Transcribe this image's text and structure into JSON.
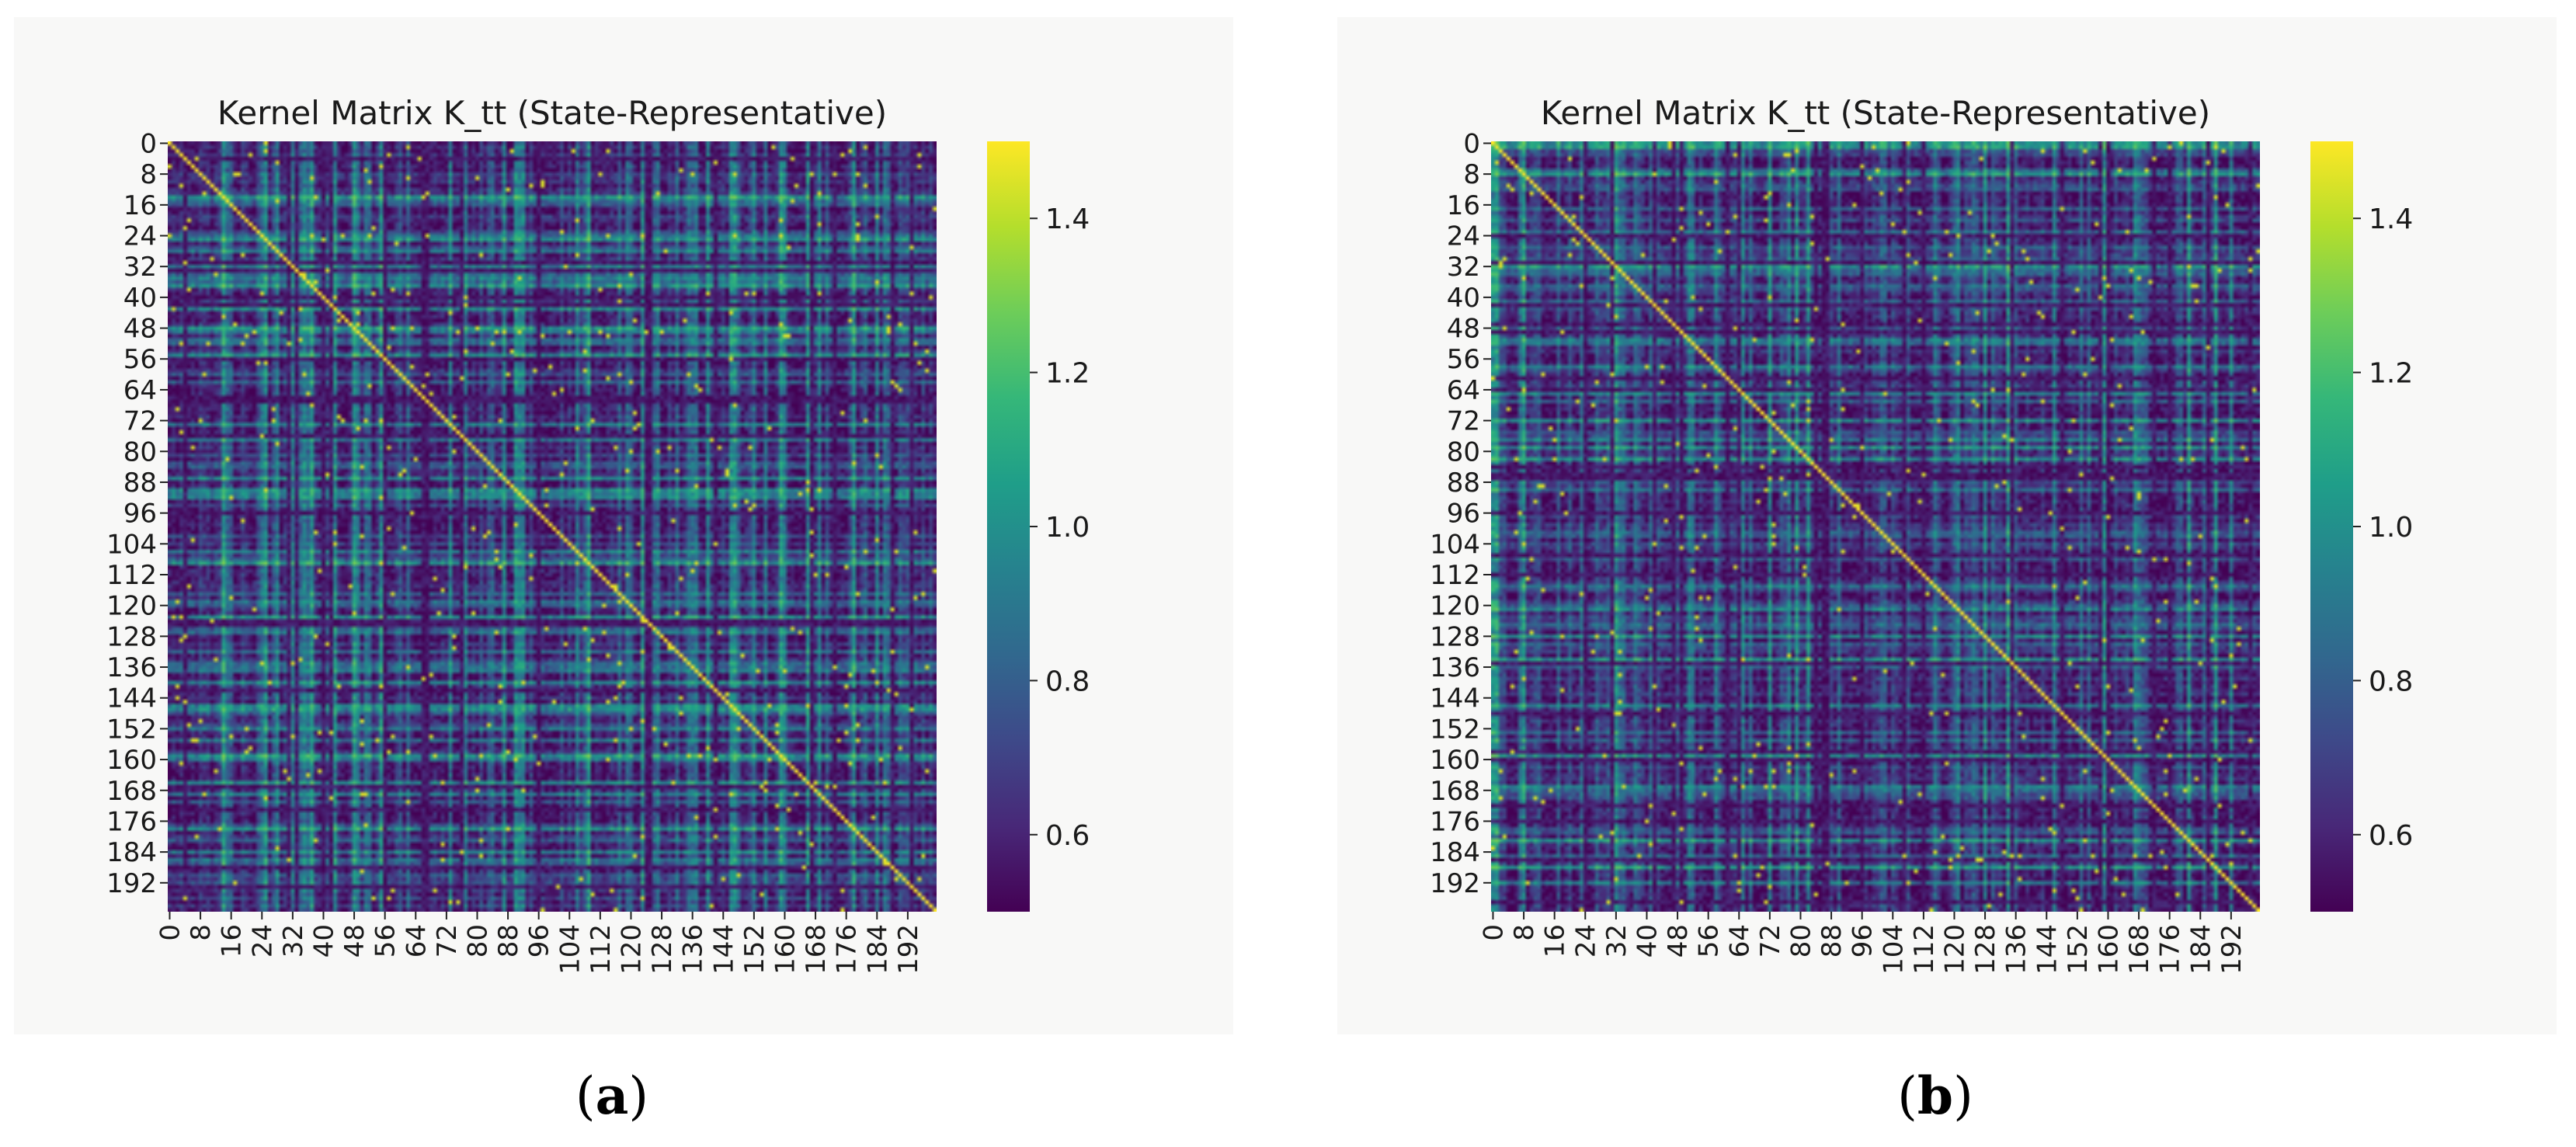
{
  "panels": [
    {
      "caption_open": "(",
      "caption_letter": "a",
      "caption_close": ")",
      "variant": 1
    },
    {
      "caption_open": "(",
      "caption_letter": "b",
      "caption_close": ")",
      "variant": 2
    }
  ],
  "chart_data": [
    {
      "type": "heatmap",
      "title": "Kernel Matrix K_tt (State-Representative)",
      "n": 200,
      "ticks": [
        0,
        8,
        16,
        24,
        32,
        40,
        48,
        56,
        64,
        72,
        80,
        88,
        96,
        104,
        112,
        120,
        128,
        136,
        144,
        152,
        160,
        168,
        176,
        184,
        192
      ],
      "colorbar": {
        "min": 0.5,
        "max": 1.5,
        "ticks": [
          0.6,
          0.8,
          1.0,
          1.2,
          1.4
        ],
        "colormap": "viridis"
      },
      "diagonal_value": 1.5
    },
    {
      "type": "heatmap",
      "title": "Kernel Matrix K_tt (State-Representative)",
      "n": 200,
      "ticks": [
        0,
        8,
        16,
        24,
        32,
        40,
        48,
        56,
        64,
        72,
        80,
        88,
        96,
        104,
        112,
        120,
        128,
        136,
        144,
        152,
        160,
        168,
        176,
        184,
        192
      ],
      "colorbar": {
        "min": 0.5,
        "max": 1.5,
        "ticks": [
          0.6,
          0.8,
          1.0,
          1.2,
          1.4
        ],
        "colormap": "viridis"
      },
      "diagonal_value": 1.5
    }
  ]
}
